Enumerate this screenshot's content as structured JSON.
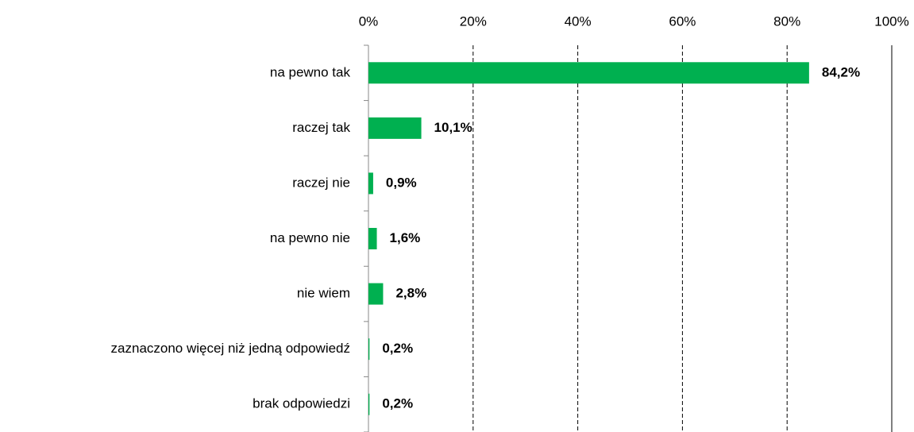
{
  "chart_data": {
    "type": "bar",
    "orientation": "horizontal",
    "categories": [
      "na pewno tak",
      "raczej tak",
      "raczej nie",
      "na pewno nie",
      "nie wiem",
      "zaznaczono więcej niż jedną odpowiedź",
      "brak odpowiedzi"
    ],
    "values": [
      84.2,
      10.1,
      0.9,
      1.6,
      2.8,
      0.2,
      0.2
    ],
    "value_labels": [
      "84,2%",
      "10,1%",
      "0,9%",
      "1,6%",
      "2,8%",
      "0,2%",
      "0,2%"
    ],
    "color": "#00b050",
    "xlim": [
      0,
      100
    ],
    "xticks": [
      {
        "value": 0,
        "label": "0%"
      },
      {
        "value": 20,
        "label": "20%"
      },
      {
        "value": 40,
        "label": "40%"
      },
      {
        "value": 60,
        "label": "60%"
      },
      {
        "value": 80,
        "label": "80%"
      },
      {
        "value": 100,
        "label": "100%"
      }
    ],
    "grid": true
  }
}
